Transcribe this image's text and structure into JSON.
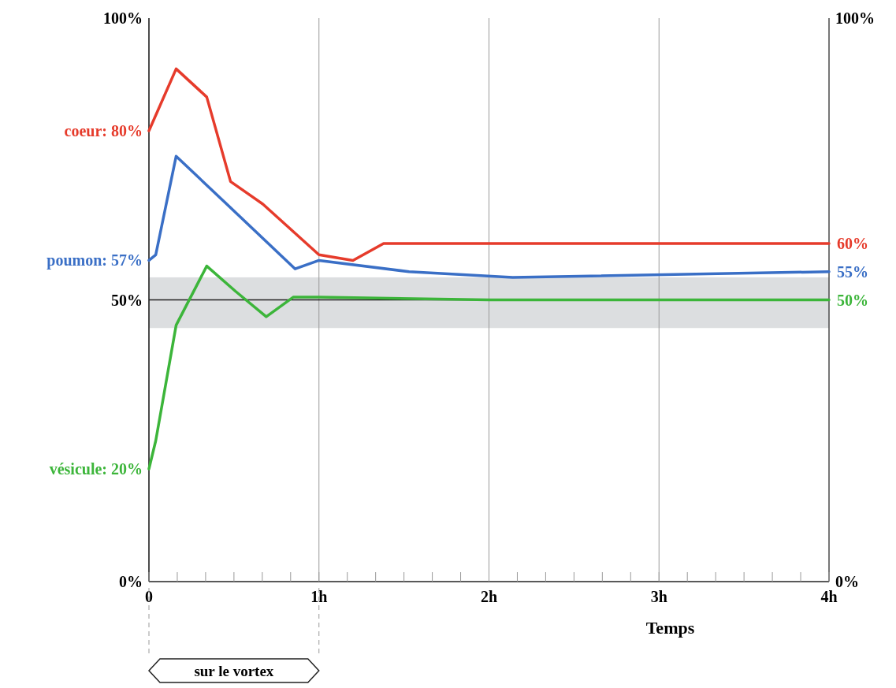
{
  "chart_data": {
    "type": "line",
    "xlabel": "Temps",
    "xlim": [
      0,
      4
    ],
    "ylim": [
      0,
      100
    ],
    "y2lim": [
      0,
      100
    ],
    "xticks": [
      0,
      {
        "value": 0.1667,
        "label": null
      },
      {
        "value": 0.3333,
        "label": null
      },
      {
        "value": 0.5,
        "label": null
      },
      {
        "value": 0.6667,
        "label": null
      },
      {
        "value": 0.8333,
        "label": null
      },
      {
        "value": 1,
        "label": "1h"
      },
      {
        "value": 1.1667,
        "label": null
      },
      {
        "value": 1.3333,
        "label": null
      },
      {
        "value": 1.5,
        "label": null
      },
      {
        "value": 1.6667,
        "label": null
      },
      {
        "value": 1.8333,
        "label": null
      },
      {
        "value": 2,
        "label": "2h"
      },
      {
        "value": 2.1667,
        "label": null
      },
      {
        "value": 2.3333,
        "label": null
      },
      {
        "value": 2.5,
        "label": null
      },
      {
        "value": 2.6667,
        "label": null
      },
      {
        "value": 2.8333,
        "label": null
      },
      {
        "value": 3,
        "label": "3h"
      },
      {
        "value": 3.1667,
        "label": null
      },
      {
        "value": 3.3333,
        "label": null
      },
      {
        "value": 3.5,
        "label": null
      },
      {
        "value": 3.6667,
        "label": null
      },
      {
        "value": 3.8333,
        "label": null
      },
      {
        "value": 4,
        "label": "4h"
      }
    ],
    "yticks": [
      {
        "value": 0,
        "label": "0%"
      },
      {
        "value": 50,
        "label": "50%"
      },
      {
        "value": 100,
        "label": "100%"
      }
    ],
    "y2ticks": [
      {
        "value": 0,
        "label": "0%"
      },
      {
        "value": 100,
        "label": "100%"
      }
    ],
    "grid": "x",
    "marker": "none",
    "line_style": "solid",
    "ref_lines": [
      {
        "axis": "y",
        "value": 50,
        "label": null,
        "color": "#222222"
      }
    ],
    "bands": [
      {
        "axis": "y",
        "from": 45,
        "to": 54,
        "label": null,
        "color": "#dcdee0"
      }
    ],
    "annotations": [
      "sur le vortex"
    ],
    "series": [
      {
        "color": "#e63b2b",
        "x": [
          0,
          0.16,
          0.34,
          0.48,
          0.67,
          1.0,
          1.2,
          1.38,
          4
        ],
        "values": [
          80,
          91,
          86,
          71,
          67,
          58,
          57,
          60,
          60
        ],
        "value_labels": [
          "coeur: 80%",
          null,
          null,
          null,
          null,
          null,
          null,
          null,
          "60%"
        ]
      },
      {
        "color": "#3a6fc6",
        "x": [
          0,
          0.04,
          0.16,
          0.86,
          1.0,
          1.53,
          2.14,
          4
        ],
        "values": [
          57,
          58,
          75.5,
          55.5,
          57,
          55,
          54,
          55
        ],
        "value_labels": [
          "poumon: 57%",
          null,
          null,
          null,
          null,
          null,
          null,
          "55%"
        ]
      },
      {
        "color": "#3cb53a",
        "x": [
          0,
          0.04,
          0.16,
          0.34,
          0.51,
          0.69,
          0.85,
          1.0,
          2.0,
          4
        ],
        "values": [
          20,
          25,
          45.5,
          56,
          51.5,
          47,
          50.5,
          50.5,
          50,
          50
        ],
        "value_labels": [
          "vésicule: 20%",
          null,
          null,
          null,
          null,
          null,
          null,
          null,
          null,
          "50%"
        ]
      }
    ]
  }
}
